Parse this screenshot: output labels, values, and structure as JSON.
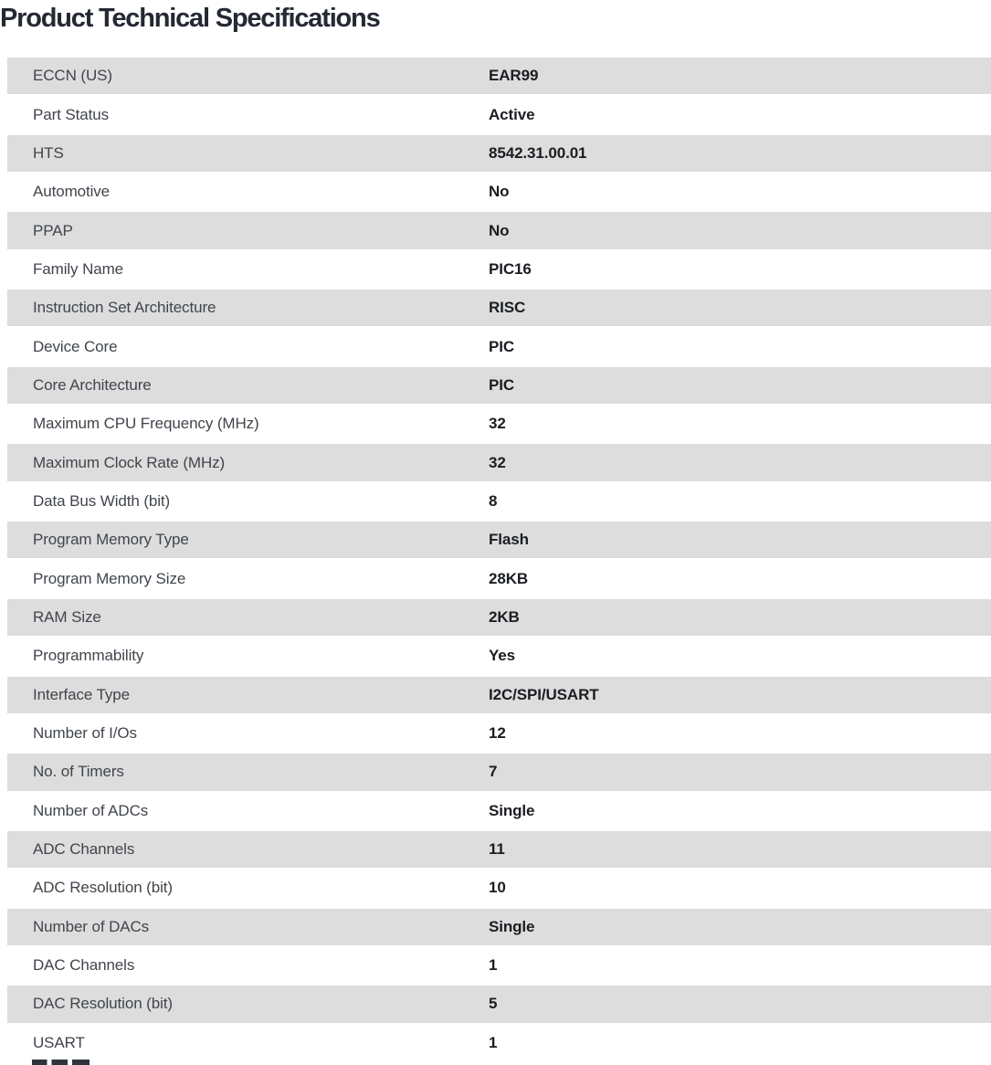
{
  "title": "Product Technical Specifications",
  "table": {
    "rows": [
      {
        "label": "ECCN (US)",
        "value": "EAR99"
      },
      {
        "label": "Part Status",
        "value": "Active"
      },
      {
        "label": "HTS",
        "value": "8542.31.00.01"
      },
      {
        "label": "Automotive",
        "value": "No"
      },
      {
        "label": "PPAP",
        "value": "No"
      },
      {
        "label": "Family Name",
        "value": "PIC16"
      },
      {
        "label": "Instruction Set Architecture",
        "value": "RISC"
      },
      {
        "label": "Device Core",
        "value": "PIC"
      },
      {
        "label": "Core Architecture",
        "value": "PIC"
      },
      {
        "label": "Maximum CPU Frequency (MHz)",
        "value": "32"
      },
      {
        "label": "Maximum Clock Rate (MHz)",
        "value": "32"
      },
      {
        "label": "Data Bus Width (bit)",
        "value": "8"
      },
      {
        "label": "Program Memory Type",
        "value": "Flash"
      },
      {
        "label": "Program Memory Size",
        "value": "28KB"
      },
      {
        "label": "RAM Size",
        "value": "2KB"
      },
      {
        "label": "Programmability",
        "value": "Yes"
      },
      {
        "label": "Interface Type",
        "value": "I2C/SPI/USART"
      },
      {
        "label": "Number of I/Os",
        "value": "12"
      },
      {
        "label": "No. of Timers",
        "value": "7"
      },
      {
        "label": "Number of ADCs",
        "value": "Single"
      },
      {
        "label": "ADC Channels",
        "value": "11"
      },
      {
        "label": "ADC Resolution (bit)",
        "value": "10"
      },
      {
        "label": "Number of DACs",
        "value": "Single"
      },
      {
        "label": "DAC Channels",
        "value": "1"
      },
      {
        "label": "DAC Resolution (bit)",
        "value": "5"
      },
      {
        "label": "USART",
        "value": "1"
      }
    ]
  },
  "colors": {
    "stripe": "#dddddd",
    "title": "#242933",
    "label": "#40454c",
    "value": "#1a1d22",
    "fragment": "#2f343b",
    "bg": "#ffffff"
  }
}
